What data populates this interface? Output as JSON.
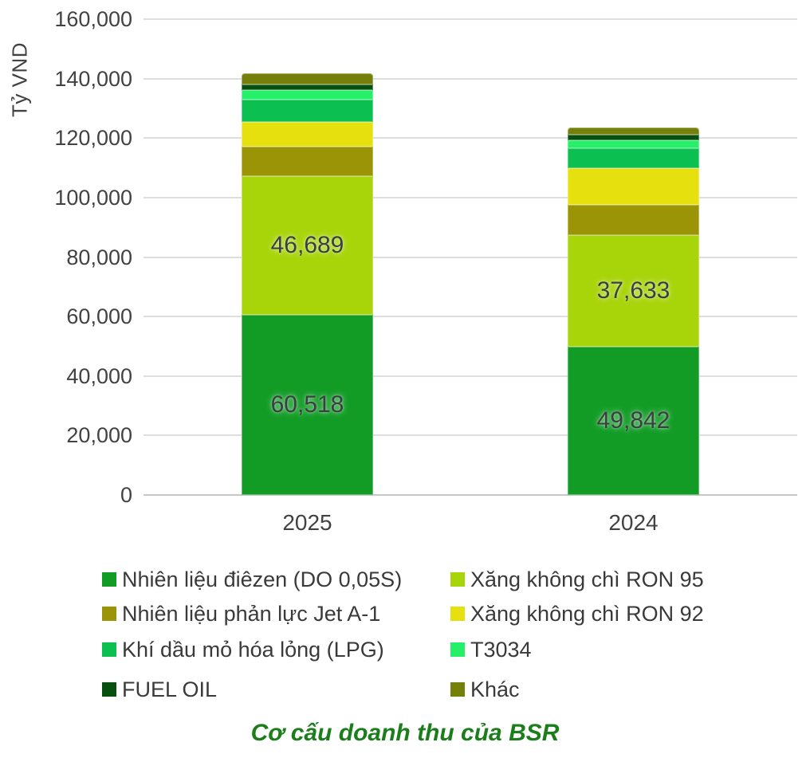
{
  "chart_data": {
    "type": "bar",
    "stacked": true,
    "title": "Cơ cấu doanh thu của BSR",
    "title_color": "#1b7e1b",
    "ylabel": "Tỷ VND",
    "ylim": [
      0,
      160000
    ],
    "ytick_step": 20000,
    "ytick_labels": [
      "0",
      "20,000",
      "40,000",
      "60,000",
      "80,000",
      "100,000",
      "120,000",
      "140,000",
      "160,000"
    ],
    "grid": true,
    "legend_position": "bottom",
    "legend_columns": 2,
    "categories": [
      "2025",
      "2024"
    ],
    "series": [
      {
        "name": "Nhiên liệu điêzen (DO 0,05S)",
        "color": "#129c26",
        "values": [
          60518,
          49842
        ],
        "labels": [
          "60,518",
          "49,842"
        ]
      },
      {
        "name": "Xăng không chì RON 95",
        "color": "#a8d40a",
        "values": [
          46689,
          37633
        ],
        "labels": [
          "46,689",
          "37,633"
        ]
      },
      {
        "name": "Nhiên liệu phản lực Jet A-1",
        "color": "#9b9406",
        "values": [
          9900,
          10200
        ]
      },
      {
        "name": "Xăng không chì RON 92",
        "color": "#e6e10e",
        "values": [
          8200,
          12100
        ]
      },
      {
        "name": "Khí dầu mỏ hóa lỏng (LPG)",
        "color": "#0bbf51",
        "values": [
          7650,
          6700
        ]
      },
      {
        "name": "T3034",
        "color": "#26f069",
        "values": [
          3200,
          2700
        ]
      },
      {
        "name": "FUEL OIL",
        "color": "#07500f",
        "values": [
          1900,
          1900
        ]
      },
      {
        "name": "Khác",
        "color": "#75800a",
        "values": [
          3800,
          2400
        ]
      }
    ]
  }
}
